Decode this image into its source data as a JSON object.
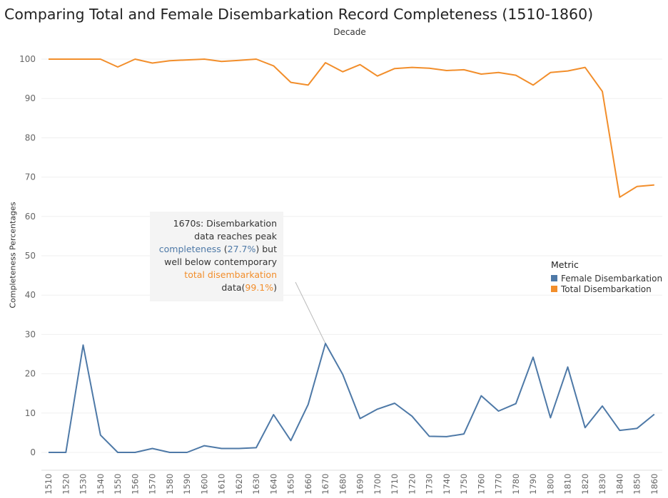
{
  "title": "Comparing Total and Female Disembarkation Record Completeness (1510-1860)",
  "colors": {
    "female": "#4e79a7",
    "total": "#f28e2b"
  },
  "legend": {
    "title": "Metric",
    "items": [
      {
        "label": "Female Disembarkation",
        "color": "#4e79a7"
      },
      {
        "label": "Total Disembarkation",
        "color": "#f28e2b"
      }
    ]
  },
  "annotation": {
    "line1": "1670s: Disembarkation",
    "line2": "data reaches peak",
    "line3a": "completeness",
    "line3b": " (",
    "line3c": "27.7%",
    "line3d": ") but",
    "line4": "well below contemporary",
    "line5": "total disembarkation",
    "line6a": "data(",
    "line6b": "99.1%",
    "line6c": ")"
  },
  "chart_data": {
    "type": "line",
    "title": "Comparing Total and Female Disembarkation Record Completeness (1510-1860)",
    "xlabel": "Decade",
    "ylabel": "Completeness Percentages",
    "ylim": [
      0,
      100
    ],
    "yticks": [
      0,
      10,
      20,
      30,
      40,
      50,
      60,
      70,
      80,
      90,
      100
    ],
    "grid": true,
    "legend_position": "right",
    "x": [
      "1510",
      "1520",
      "1530",
      "1540",
      "1550",
      "1560",
      "1570",
      "1580",
      "1590",
      "1600",
      "1610",
      "1620",
      "1630",
      "1640",
      "1650",
      "1660",
      "1670",
      "1680",
      "1690",
      "1700",
      "1710",
      "1720",
      "1730",
      "1740",
      "1750",
      "1760",
      "1770",
      "1780",
      "1790",
      "1800",
      "1810",
      "1820",
      "1830",
      "1840",
      "1850",
      "1860"
    ],
    "series": [
      {
        "name": "Female Disembarkation",
        "color": "#4e79a7",
        "values": [
          0,
          0,
          27.3,
          4.4,
          0,
          0,
          1.0,
          0,
          0,
          1.7,
          1.0,
          1.0,
          1.2,
          9.6,
          3.0,
          12.2,
          27.7,
          19.8,
          8.6,
          11.0,
          12.5,
          9.2,
          4.1,
          4.0,
          4.7,
          14.4,
          10.5,
          12.4,
          24.2,
          8.8,
          21.7,
          6.3,
          11.8,
          5.6,
          6.1,
          9.7
        ]
      },
      {
        "name": "Total Disembarkation",
        "color": "#f28e2b",
        "values": [
          100,
          100,
          100,
          100,
          98.0,
          100,
          99.0,
          99.6,
          99.8,
          100,
          99.4,
          99.7,
          100,
          98.3,
          94.1,
          93.4,
          99.1,
          96.8,
          98.6,
          95.7,
          97.6,
          97.9,
          97.7,
          97.1,
          97.3,
          96.2,
          96.6,
          95.9,
          93.4,
          96.6,
          97.0,
          97.9,
          91.8,
          64.9,
          67.6,
          68.0
        ]
      }
    ]
  }
}
